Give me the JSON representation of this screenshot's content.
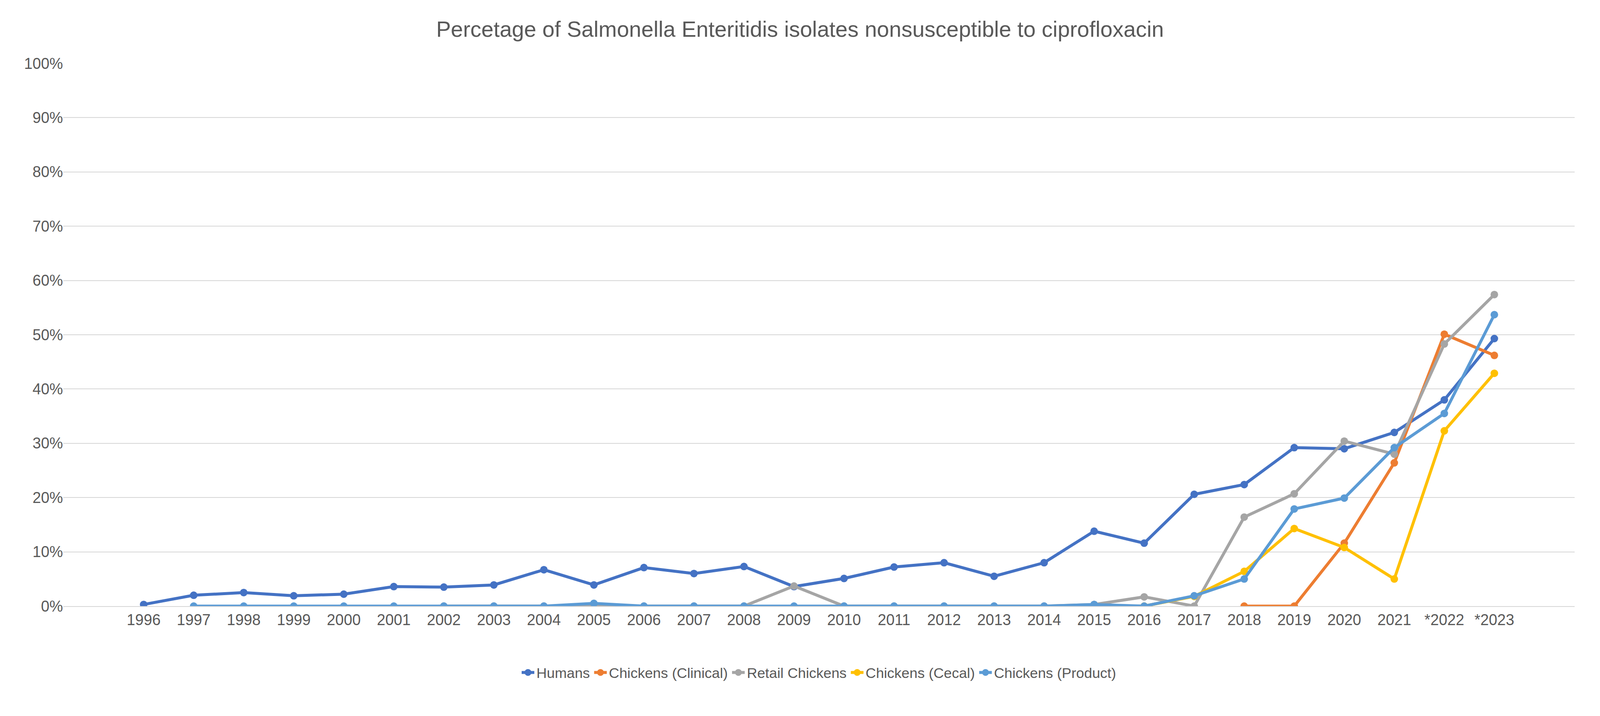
{
  "chart_data": {
    "type": "line",
    "title": "Percetage of Salmonella Enteritidis isolates nonsusceptible to ciprofloxacin",
    "categories": [
      "1996",
      "1997",
      "1998",
      "1999",
      "2000",
      "2001",
      "2002",
      "2003",
      "2004",
      "2005",
      "2006",
      "2007",
      "2008",
      "2009",
      "2010",
      "2011",
      "2012",
      "2013",
      "2014",
      "2015",
      "2016",
      "2017",
      "2018",
      "2019",
      "2020",
      "2021",
      "*2022",
      "*2023"
    ],
    "series": [
      {
        "name": "Humans",
        "color": "#4472c4",
        "values": [
          0.3,
          2.0,
          2.5,
          1.9,
          2.2,
          3.6,
          3.5,
          3.9,
          6.7,
          3.9,
          7.1,
          6.0,
          7.3,
          3.6,
          5.1,
          7.2,
          8.0,
          5.5,
          8.0,
          13.8,
          11.6,
          20.6,
          22.4,
          29.2,
          29.0,
          32.0,
          38.0,
          49.3
        ]
      },
      {
        "name": "Chickens (Clinical)",
        "color": "#ed7d31",
        "values": [
          null,
          null,
          null,
          null,
          null,
          null,
          null,
          null,
          null,
          null,
          null,
          null,
          null,
          null,
          null,
          null,
          null,
          null,
          null,
          null,
          null,
          null,
          0,
          0,
          11.6,
          26.4,
          50.1,
          46.2
        ]
      },
      {
        "name": "Retail Chickens",
        "color": "#a5a5a5",
        "values": [
          null,
          null,
          null,
          null,
          null,
          null,
          0,
          0,
          0,
          0,
          0,
          0,
          0,
          3.7,
          0,
          0,
          0,
          0,
          0,
          0.3,
          1.7,
          0,
          16.4,
          20.7,
          30.4,
          28.0,
          48.3,
          57.4
        ]
      },
      {
        "name": "Chickens (Cecal)",
        "color": "#ffc000",
        "values": [
          null,
          null,
          null,
          null,
          null,
          null,
          null,
          null,
          null,
          null,
          null,
          null,
          null,
          null,
          null,
          null,
          null,
          null,
          null,
          0,
          0,
          1.8,
          6.4,
          14.3,
          10.8,
          5.0,
          32.3,
          42.9
        ]
      },
      {
        "name": "Chickens (Product)",
        "color": "#5b9bd5",
        "values": [
          null,
          0,
          0,
          0,
          0,
          0,
          0,
          0,
          0,
          0.5,
          0,
          0,
          0,
          0,
          0,
          0,
          0,
          0,
          0,
          0.3,
          0,
          1.9,
          5.0,
          17.9,
          19.9,
          29.2,
          35.5,
          53.7
        ]
      }
    ],
    "ylim": [
      0,
      100
    ],
    "yticks": [
      {
        "value": 0,
        "label": "0%"
      },
      {
        "value": 10,
        "label": "10%"
      },
      {
        "value": 20,
        "label": "20%"
      },
      {
        "value": 30,
        "label": "30%"
      },
      {
        "value": 40,
        "label": "40%"
      },
      {
        "value": 50,
        "label": "50%"
      },
      {
        "value": 60,
        "label": "60%"
      },
      {
        "value": 70,
        "label": "70%"
      },
      {
        "value": 80,
        "label": "80%"
      },
      {
        "value": 90,
        "label": "90%"
      },
      {
        "value": 100,
        "label": "100%"
      }
    ],
    "grid": true,
    "legend": "bottom",
    "marker": "circle",
    "line_style": "solid"
  }
}
